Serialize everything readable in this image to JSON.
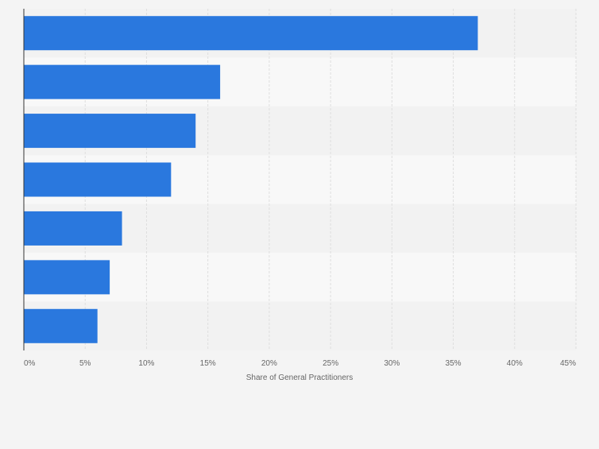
{
  "chart_data": {
    "type": "bar",
    "orientation": "horizontal",
    "categories": [
      "",
      "",
      "",
      "",
      "",
      "",
      ""
    ],
    "values": [
      37,
      16,
      14,
      12,
      8,
      7,
      6
    ],
    "xlabel": "Share of General Practitioners",
    "ylabel": "",
    "xlim": [
      0,
      45
    ],
    "x_ticks": [
      "0%",
      "5%",
      "10%",
      "15%",
      "20%",
      "25%",
      "30%",
      "35%",
      "40%",
      "45%"
    ],
    "grid": true,
    "legend": "none",
    "colors": {
      "bar": "#2a78de",
      "background": "#f4f4f4",
      "band_light": "#f8f8f8",
      "band_dark": "#f2f2f2",
      "grid": "#dedede",
      "axis": "#333333",
      "tick_text": "#666666"
    }
  }
}
